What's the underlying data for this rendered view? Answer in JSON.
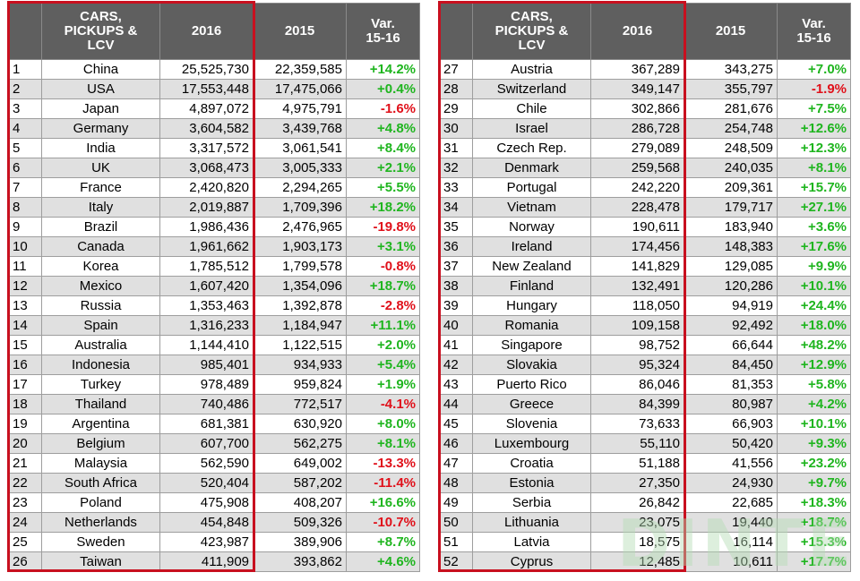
{
  "headers": {
    "rank": "",
    "segment": "CARS,\nPICKUPS &\nLCV",
    "year_2016": "2016",
    "year_2015": "2015",
    "variation": "Var.\n15-16"
  },
  "colors": {
    "positive": "#1fb51f",
    "negative": "#e0101a",
    "header_bg": "#5f5f5f",
    "highlight_border": "#c8101f"
  },
  "watermark": "DINTE",
  "left_rows": [
    {
      "rank": "1",
      "country": "China",
      "v2016": "25,525,730",
      "v2015": "22,359,585",
      "var": "+14.2%"
    },
    {
      "rank": "2",
      "country": "USA",
      "v2016": "17,553,448",
      "v2015": "17,475,066",
      "var": "+0.4%"
    },
    {
      "rank": "3",
      "country": "Japan",
      "v2016": "4,897,072",
      "v2015": "4,975,791",
      "var": "-1.6%"
    },
    {
      "rank": "4",
      "country": "Germany",
      "v2016": "3,604,582",
      "v2015": "3,439,768",
      "var": "+4.8%"
    },
    {
      "rank": "5",
      "country": "India",
      "v2016": "3,317,572",
      "v2015": "3,061,541",
      "var": "+8.4%"
    },
    {
      "rank": "6",
      "country": "UK",
      "v2016": "3,068,473",
      "v2015": "3,005,333",
      "var": "+2.1%"
    },
    {
      "rank": "7",
      "country": "France",
      "v2016": "2,420,820",
      "v2015": "2,294,265",
      "var": "+5.5%"
    },
    {
      "rank": "8",
      "country": "Italy",
      "v2016": "2,019,887",
      "v2015": "1,709,396",
      "var": "+18.2%"
    },
    {
      "rank": "9",
      "country": "Brazil",
      "v2016": "1,986,436",
      "v2015": "2,476,965",
      "var": "-19.8%"
    },
    {
      "rank": "10",
      "country": "Canada",
      "v2016": "1,961,662",
      "v2015": "1,903,173",
      "var": "+3.1%"
    },
    {
      "rank": "11",
      "country": "Korea",
      "v2016": "1,785,512",
      "v2015": "1,799,578",
      "var": "-0.8%"
    },
    {
      "rank": "12",
      "country": "Mexico",
      "v2016": "1,607,420",
      "v2015": "1,354,096",
      "var": "+18.7%"
    },
    {
      "rank": "13",
      "country": "Russia",
      "v2016": "1,353,463",
      "v2015": "1,392,878",
      "var": "-2.8%"
    },
    {
      "rank": "14",
      "country": "Spain",
      "v2016": "1,316,233",
      "v2015": "1,184,947",
      "var": "+11.1%"
    },
    {
      "rank": "15",
      "country": "Australia",
      "v2016": "1,144,410",
      "v2015": "1,122,515",
      "var": "+2.0%"
    },
    {
      "rank": "16",
      "country": "Indonesia",
      "v2016": "985,401",
      "v2015": "934,933",
      "var": "+5.4%"
    },
    {
      "rank": "17",
      "country": "Turkey",
      "v2016": "978,489",
      "v2015": "959,824",
      "var": "+1.9%"
    },
    {
      "rank": "18",
      "country": "Thailand",
      "v2016": "740,486",
      "v2015": "772,517",
      "var": "-4.1%"
    },
    {
      "rank": "19",
      "country": "Argentina",
      "v2016": "681,381",
      "v2015": "630,920",
      "var": "+8.0%"
    },
    {
      "rank": "20",
      "country": "Belgium",
      "v2016": "607,700",
      "v2015": "562,275",
      "var": "+8.1%"
    },
    {
      "rank": "21",
      "country": "Malaysia",
      "v2016": "562,590",
      "v2015": "649,002",
      "var": "-13.3%"
    },
    {
      "rank": "22",
      "country": "South Africa",
      "v2016": "520,404",
      "v2015": "587,202",
      "var": "-11.4%"
    },
    {
      "rank": "23",
      "country": "Poland",
      "v2016": "475,908",
      "v2015": "408,207",
      "var": "+16.6%"
    },
    {
      "rank": "24",
      "country": "Netherlands",
      "v2016": "454,848",
      "v2015": "509,326",
      "var": "-10.7%"
    },
    {
      "rank": "25",
      "country": "Sweden",
      "v2016": "423,987",
      "v2015": "389,906",
      "var": "+8.7%"
    },
    {
      "rank": "26",
      "country": "Taiwan",
      "v2016": "411,909",
      "v2015": "393,862",
      "var": "+4.6%"
    }
  ],
  "right_rows": [
    {
      "rank": "27",
      "country": "Austria",
      "v2016": "367,289",
      "v2015": "343,275",
      "var": "+7.0%"
    },
    {
      "rank": "28",
      "country": "Switzerland",
      "v2016": "349,147",
      "v2015": "355,797",
      "var": "-1.9%"
    },
    {
      "rank": "29",
      "country": "Chile",
      "v2016": "302,866",
      "v2015": "281,676",
      "var": "+7.5%"
    },
    {
      "rank": "30",
      "country": "Israel",
      "v2016": "286,728",
      "v2015": "254,748",
      "var": "+12.6%"
    },
    {
      "rank": "31",
      "country": "Czech Rep.",
      "v2016": "279,089",
      "v2015": "248,509",
      "var": "+12.3%"
    },
    {
      "rank": "32",
      "country": "Denmark",
      "v2016": "259,568",
      "v2015": "240,035",
      "var": "+8.1%"
    },
    {
      "rank": "33",
      "country": "Portugal",
      "v2016": "242,220",
      "v2015": "209,361",
      "var": "+15.7%"
    },
    {
      "rank": "34",
      "country": "Vietnam",
      "v2016": "228,478",
      "v2015": "179,717",
      "var": "+27.1%"
    },
    {
      "rank": "35",
      "country": "Norway",
      "v2016": "190,611",
      "v2015": "183,940",
      "var": "+3.6%"
    },
    {
      "rank": "36",
      "country": "Ireland",
      "v2016": "174,456",
      "v2015": "148,383",
      "var": "+17.6%"
    },
    {
      "rank": "37",
      "country": "New Zealand",
      "v2016": "141,829",
      "v2015": "129,085",
      "var": "+9.9%"
    },
    {
      "rank": "38",
      "country": "Finland",
      "v2016": "132,491",
      "v2015": "120,286",
      "var": "+10.1%"
    },
    {
      "rank": "39",
      "country": "Hungary",
      "v2016": "118,050",
      "v2015": "94,919",
      "var": "+24.4%"
    },
    {
      "rank": "40",
      "country": "Romania",
      "v2016": "109,158",
      "v2015": "92,492",
      "var": "+18.0%"
    },
    {
      "rank": "41",
      "country": "Singapore",
      "v2016": "98,752",
      "v2015": "66,644",
      "var": "+48.2%"
    },
    {
      "rank": "42",
      "country": "Slovakia",
      "v2016": "95,324",
      "v2015": "84,450",
      "var": "+12.9%"
    },
    {
      "rank": "43",
      "country": "Puerto Rico",
      "v2016": "86,046",
      "v2015": "81,353",
      "var": "+5.8%"
    },
    {
      "rank": "44",
      "country": "Greece",
      "v2016": "84,399",
      "v2015": "80,987",
      "var": "+4.2%"
    },
    {
      "rank": "45",
      "country": "Slovenia",
      "v2016": "73,633",
      "v2015": "66,903",
      "var": "+10.1%"
    },
    {
      "rank": "46",
      "country": "Luxembourg",
      "v2016": "55,110",
      "v2015": "50,420",
      "var": "+9.3%"
    },
    {
      "rank": "47",
      "country": "Croatia",
      "v2016": "51,188",
      "v2015": "41,556",
      "var": "+23.2%"
    },
    {
      "rank": "48",
      "country": "Estonia",
      "v2016": "27,350",
      "v2015": "24,930",
      "var": "+9.7%"
    },
    {
      "rank": "49",
      "country": "Serbia",
      "v2016": "26,842",
      "v2015": "22,685",
      "var": "+18.3%"
    },
    {
      "rank": "50",
      "country": "Lithuania",
      "v2016": "23,075",
      "v2015": "19,440",
      "var": "+18.7%"
    },
    {
      "rank": "51",
      "country": "Latvia",
      "v2016": "18,575",
      "v2015": "16,114",
      "var": "+15.3%"
    },
    {
      "rank": "52",
      "country": "Cyprus",
      "v2016": "12,485",
      "v2015": "10,611",
      "var": "+17.7%"
    }
  ]
}
